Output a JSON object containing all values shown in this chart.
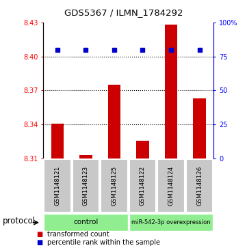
{
  "title": "GDS5367 / ILMN_1784292",
  "samples": [
    "GSM1148121",
    "GSM1148123",
    "GSM1148125",
    "GSM1148122",
    "GSM1148124",
    "GSM1148126"
  ],
  "transformed_counts": [
    8.341,
    8.313,
    8.375,
    8.326,
    8.428,
    8.363
  ],
  "percentile_ranks": [
    80,
    80,
    80,
    80,
    80,
    80
  ],
  "y_min": 8.31,
  "y_max": 8.43,
  "y_ticks": [
    8.31,
    8.34,
    8.37,
    8.4,
    8.43
  ],
  "y_tick_labels": [
    "8.31",
    "8.34",
    "8.37",
    "8.40",
    "8.43"
  ],
  "y2_ticks": [
    0,
    25,
    50,
    75,
    100
  ],
  "y2_tick_labels": [
    "0",
    "25",
    "50",
    "75",
    "100%"
  ],
  "dotted_lines": [
    8.4,
    8.37,
    8.34
  ],
  "bar_color": "#CC0000",
  "dot_color": "#0000CC",
  "sample_box_color": "#C8C8C8",
  "bar_bottom": 8.31,
  "percentile_rank_value": 80,
  "ctrl_label": "control",
  "mir_label": "miR-542-3p overexpression",
  "group_color": "#90EE90",
  "protocol_label": "protocol",
  "legend_red_label": "transformed count",
  "legend_blue_label": "percentile rank within the sample"
}
